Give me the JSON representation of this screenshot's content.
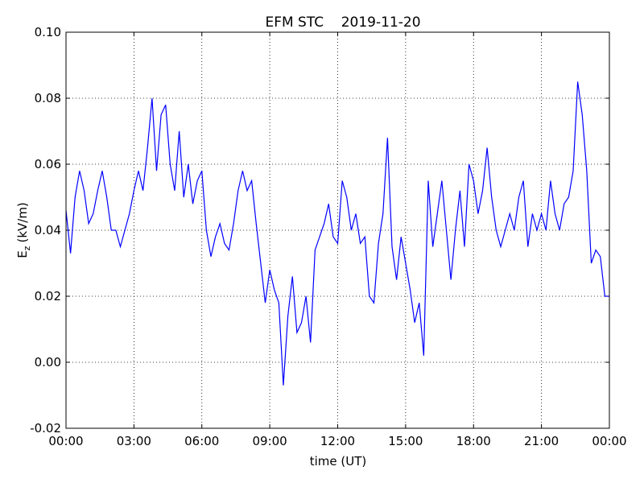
{
  "chart_data": {
    "type": "line",
    "title": "EFM STC    2019-11-20",
    "xlabel": "time (UT)",
    "ylabel": {
      "base": "E",
      "sub": "z",
      "unit": "(kV/m)"
    },
    "xlim": [
      0,
      24
    ],
    "xticks": [
      {
        "value": 0,
        "label": "00:00"
      },
      {
        "value": 3,
        "label": "03:00"
      },
      {
        "value": 6,
        "label": "06:00"
      },
      {
        "value": 9,
        "label": "09:00"
      },
      {
        "value": 12,
        "label": "12:00"
      },
      {
        "value": 15,
        "label": "15:00"
      },
      {
        "value": 18,
        "label": "18:00"
      },
      {
        "value": 21,
        "label": "21:00"
      },
      {
        "value": 24,
        "label": "00:00"
      }
    ],
    "ylim": [
      -0.02,
      0.1
    ],
    "yticks": [
      -0.02,
      {
        "value": 0,
        "label": "0.00"
      },
      0.02,
      0.04,
      0.06,
      0.08,
      {
        "value": 0.1,
        "label": "0.10"
      }
    ],
    "grid": true,
    "series": [
      {
        "color": "#0000ff",
        "x": [
          0,
          0.2,
          0.4,
          0.6,
          0.8,
          1,
          1.2,
          1.4,
          1.6,
          1.8,
          2,
          2.2,
          2.4,
          2.6,
          2.8,
          3,
          3.2,
          3.4,
          3.6,
          3.8,
          4,
          4.2,
          4.4,
          4.6,
          4.8,
          5,
          5.2,
          5.4,
          5.6,
          5.8,
          6,
          6.2,
          6.4,
          6.6,
          6.8,
          7,
          7.2,
          7.4,
          7.6,
          7.8,
          8,
          8.2,
          8.4,
          8.6,
          8.8,
          9,
          9.2,
          9.4,
          9.6,
          9.8,
          10,
          10.2,
          10.4,
          10.6,
          10.8,
          11,
          11.2,
          11.4,
          11.6,
          11.8,
          12,
          12.2,
          12.4,
          12.6,
          12.8,
          13,
          13.2,
          13.4,
          13.6,
          13.8,
          14,
          14.2,
          14.4,
          14.6,
          14.8,
          15,
          15.2,
          15.4,
          15.6,
          15.8,
          16,
          16.2,
          16.4,
          16.6,
          16.8,
          17,
          17.2,
          17.4,
          17.6,
          17.8,
          18,
          18.2,
          18.4,
          18.6,
          18.8,
          19,
          19.2,
          19.4,
          19.6,
          19.8,
          20,
          20.2,
          20.4,
          20.6,
          20.8,
          21,
          21.2,
          21.4,
          21.6,
          21.8,
          22,
          22.2,
          22.4,
          22.6,
          22.8,
          23,
          23.2,
          23.4,
          23.6,
          23.8,
          24
        ],
        "values": [
          0.046,
          0.033,
          0.05,
          0.058,
          0.052,
          0.042,
          0.045,
          0.052,
          0.058,
          0.05,
          0.04,
          0.04,
          0.035,
          0.04,
          0.045,
          0.052,
          0.058,
          0.052,
          0.065,
          0.08,
          0.058,
          0.075,
          0.078,
          0.06,
          0.052,
          0.07,
          0.05,
          0.06,
          0.048,
          0.055,
          0.058,
          0.04,
          0.032,
          0.038,
          0.042,
          0.036,
          0.034,
          0.042,
          0.052,
          0.058,
          0.052,
          0.055,
          0.042,
          0.03,
          0.018,
          0.028,
          0.022,
          0.018,
          -0.007,
          0.014,
          0.026,
          0.009,
          0.012,
          0.02,
          0.006,
          0.034,
          0.038,
          0.042,
          0.048,
          0.038,
          0.036,
          0.055,
          0.05,
          0.04,
          0.045,
          0.036,
          0.038,
          0.02,
          0.018,
          0.036,
          0.045,
          0.068,
          0.035,
          0.025,
          0.038,
          0.03,
          0.022,
          0.012,
          0.018,
          0.002,
          0.055,
          0.035,
          0.045,
          0.055,
          0.04,
          0.025,
          0.04,
          0.052,
          0.035,
          0.06,
          0.055,
          0.045,
          0.052,
          0.065,
          0.05,
          0.04,
          0.035,
          0.04,
          0.045,
          0.04,
          0.05,
          0.055,
          0.035,
          0.045,
          0.04,
          0.045,
          0.04,
          0.055,
          0.045,
          0.04,
          0.048,
          0.05,
          0.058,
          0.085,
          0.075,
          0.058,
          0.03,
          0.034,
          0.032,
          0.02,
          0.02
        ]
      }
    ]
  }
}
